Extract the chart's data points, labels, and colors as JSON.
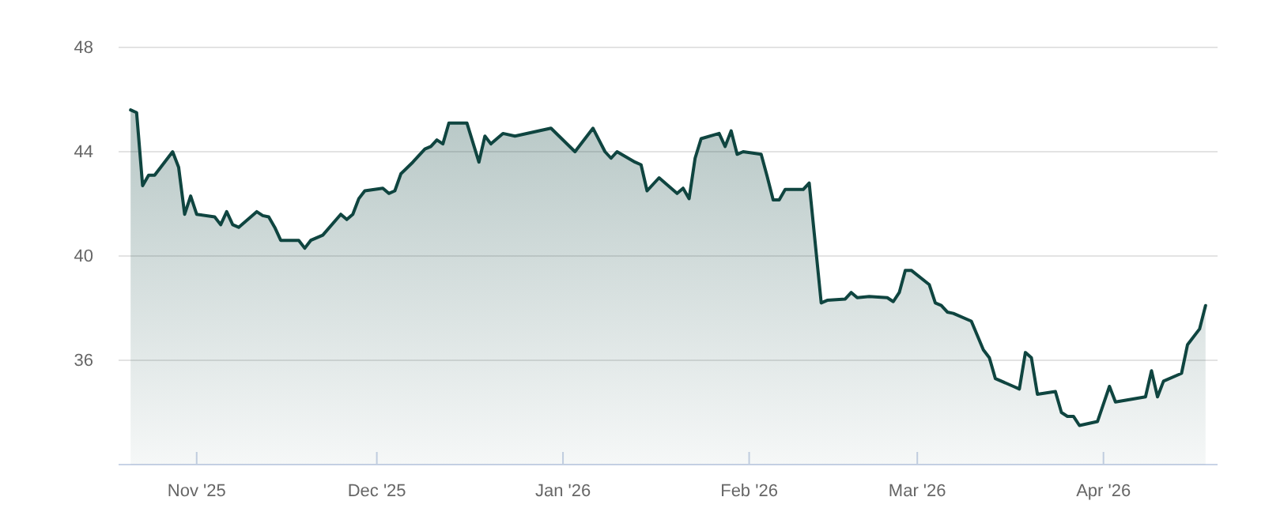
{
  "chart_data": {
    "type": "area",
    "x": [
      "2025-10-21",
      "2025-10-22",
      "2025-10-23",
      "2025-10-24",
      "2025-10-25",
      "2025-10-28",
      "2025-10-29",
      "2025-10-30",
      "2025-10-31",
      "2025-11-01",
      "2025-11-04",
      "2025-11-05",
      "2025-11-06",
      "2025-11-07",
      "2025-11-08",
      "2025-11-11",
      "2025-11-12",
      "2025-11-13",
      "2025-11-14",
      "2025-11-15",
      "2025-11-18",
      "2025-11-19",
      "2025-11-20",
      "2025-11-22",
      "2025-11-25",
      "2025-11-26",
      "2025-11-27",
      "2025-11-28",
      "2025-11-29",
      "2025-12-02",
      "2025-12-03",
      "2025-12-04",
      "2025-12-05",
      "2025-12-07",
      "2025-12-09",
      "2025-12-10",
      "2025-12-11",
      "2025-12-12",
      "2025-12-13",
      "2025-12-16",
      "2025-12-18",
      "2025-12-19",
      "2025-12-20",
      "2025-12-22",
      "2025-12-24",
      "2025-12-30",
      "2026-01-03",
      "2026-01-06",
      "2026-01-08",
      "2026-01-09",
      "2026-01-10",
      "2026-01-13",
      "2026-01-14",
      "2026-01-15",
      "2026-01-17",
      "2026-01-20",
      "2026-01-21",
      "2026-01-22",
      "2026-01-23",
      "2026-01-24",
      "2026-01-27",
      "2026-01-28",
      "2026-01-29",
      "2026-01-30",
      "2026-01-31",
      "2026-02-03",
      "2026-02-04",
      "2026-02-05",
      "2026-02-06",
      "2026-02-07",
      "2026-02-10",
      "2026-02-11",
      "2026-02-13",
      "2026-02-14",
      "2026-02-17",
      "2026-02-18",
      "2026-02-19",
      "2026-02-21",
      "2026-02-24",
      "2026-02-25",
      "2026-02-26",
      "2026-02-27",
      "2026-02-28",
      "2026-03-03",
      "2026-03-04",
      "2026-03-05",
      "2026-03-06",
      "2026-03-07",
      "2026-03-10",
      "2026-03-12",
      "2026-03-13",
      "2026-03-14",
      "2026-03-17",
      "2026-03-18",
      "2026-03-19",
      "2026-03-20",
      "2026-03-21",
      "2026-03-24",
      "2026-03-25",
      "2026-03-26",
      "2026-03-27",
      "2026-03-28",
      "2026-03-31",
      "2026-04-02",
      "2026-04-03",
      "2026-04-08",
      "2026-04-09",
      "2026-04-10",
      "2026-04-11",
      "2026-04-14",
      "2026-04-15",
      "2026-04-17",
      "2026-04-18"
    ],
    "series": [
      {
        "color": "#0f4540",
        "values": [
          45.6,
          45.5,
          42.7,
          43.1,
          43.1,
          44.0,
          43.4,
          41.6,
          42.3,
          41.6,
          41.5,
          41.2,
          41.7,
          41.2,
          41.1,
          41.7,
          41.55,
          41.5,
          41.1,
          40.6,
          40.6,
          40.3,
          40.6,
          40.8,
          41.6,
          41.4,
          41.6,
          42.2,
          42.5,
          42.6,
          42.4,
          42.5,
          43.15,
          43.6,
          44.1,
          44.2,
          44.45,
          44.3,
          45.1,
          45.1,
          43.6,
          44.6,
          44.3,
          44.7,
          44.6,
          44.9,
          44.0,
          44.9,
          44.0,
          43.75,
          44.0,
          43.6,
          43.5,
          42.5,
          43.0,
          42.4,
          42.6,
          42.2,
          43.75,
          44.5,
          44.7,
          44.2,
          44.8,
          43.9,
          44.0,
          43.9,
          43.05,
          42.15,
          42.15,
          42.55,
          42.55,
          42.8,
          38.2,
          38.3,
          38.35,
          38.6,
          38.4,
          38.45,
          38.4,
          38.25,
          38.6,
          39.45,
          39.45,
          38.9,
          38.2,
          38.1,
          37.85,
          37.8,
          37.5,
          36.4,
          36.1,
          35.3,
          35.0,
          34.9,
          36.3,
          36.1,
          34.7,
          34.8,
          34.0,
          33.85,
          33.85,
          33.5,
          33.65,
          35.0,
          34.4,
          34.6,
          35.6,
          34.6,
          35.2,
          35.5,
          36.6,
          37.2,
          38.1
        ]
      }
    ],
    "xlim": [
      "2025-10-19",
      "2026-04-20"
    ],
    "xticks": [
      {
        "value": "2025-11-01",
        "label": "Nov '25"
      },
      {
        "value": "2025-12-01",
        "label": "Dec '25"
      },
      {
        "value": "2026-01-01",
        "label": "Jan '26"
      },
      {
        "value": "2026-02-01",
        "label": "Feb '26"
      },
      {
        "value": "2026-03-01",
        "label": "Mar '26"
      },
      {
        "value": "2026-04-01",
        "label": "Apr '26"
      }
    ],
    "ylim": [
      32,
      48
    ],
    "yticks": [
      36,
      40,
      44,
      48
    ],
    "grid": "y"
  }
}
